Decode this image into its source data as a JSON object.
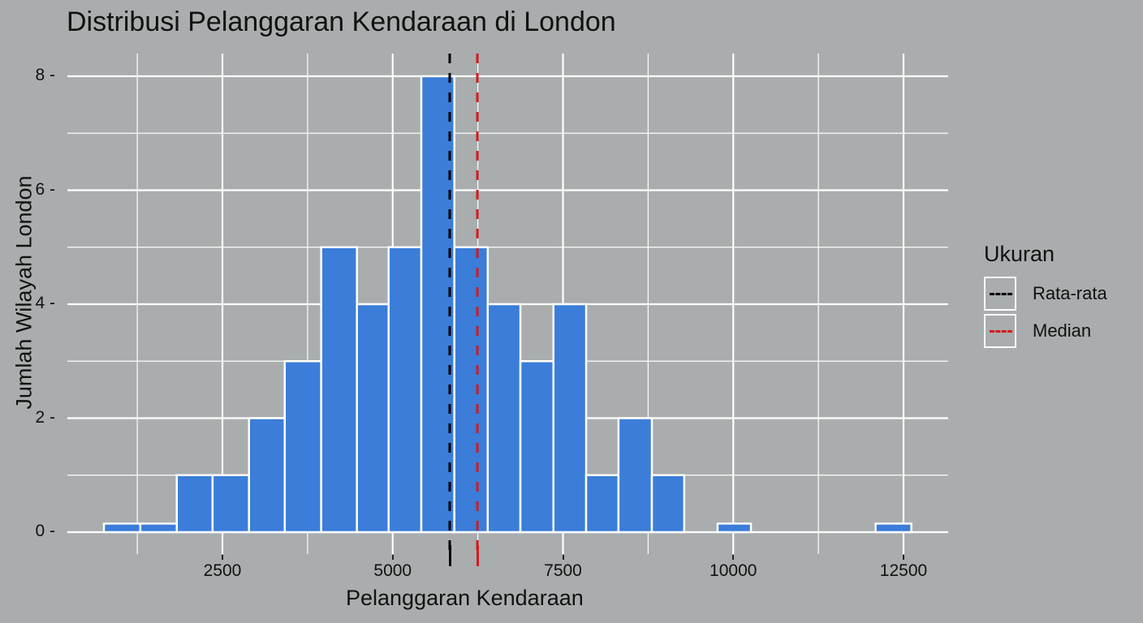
{
  "chart_data": {
    "type": "bar",
    "title": "Distribusi Pelanggaran Kendaraan di London",
    "xlabel": "Pelanggaran Kendaraan",
    "ylabel": "Jumlah Wilayah London",
    "xlim": [
      200,
      13100
    ],
    "ylim": [
      0,
      8.6
    ],
    "x_ticks": [
      2500,
      5000,
      7500,
      10000,
      12500
    ],
    "x_tick_labels": [
      "2500",
      "5000",
      "7500",
      "10000",
      "12500"
    ],
    "y_ticks": [
      0,
      2,
      4,
      6,
      8
    ],
    "y_tick_labels": [
      "0",
      "2",
      "4",
      "6",
      "8"
    ],
    "grid": true,
    "bins": [
      {
        "x0": 760,
        "x1": 1295,
        "count": 0.15
      },
      {
        "x0": 1295,
        "x1": 1830,
        "count": 0.15
      },
      {
        "x0": 1830,
        "x1": 2355,
        "count": 1
      },
      {
        "x0": 2355,
        "x1": 2890,
        "count": 1
      },
      {
        "x0": 2890,
        "x1": 3415,
        "count": 2
      },
      {
        "x0": 3415,
        "x1": 3950,
        "count": 3
      },
      {
        "x0": 3950,
        "x1": 4475,
        "count": 5
      },
      {
        "x0": 4475,
        "x1": 4940,
        "count": 4
      },
      {
        "x0": 4940,
        "x1": 5420,
        "count": 5
      },
      {
        "x0": 5420,
        "x1": 5905,
        "count": 8
      },
      {
        "x0": 5905,
        "x1": 6395,
        "count": 5
      },
      {
        "x0": 6395,
        "x1": 6875,
        "count": 4
      },
      {
        "x0": 6875,
        "x1": 7360,
        "count": 3
      },
      {
        "x0": 7360,
        "x1": 7840,
        "count": 4
      },
      {
        "x0": 7840,
        "x1": 8315,
        "count": 1
      },
      {
        "x0": 8315,
        "x1": 8805,
        "count": 2
      },
      {
        "x0": 8805,
        "x1": 9280,
        "count": 1
      },
      {
        "x0": 9770,
        "x1": 10260,
        "count": 0.15
      },
      {
        "x0": 12090,
        "x1": 12615,
        "count": 0.15
      }
    ],
    "vlines": [
      {
        "name": "Rata-rata",
        "x": 5837,
        "color": "#000000",
        "style": "dashed"
      },
      {
        "name": "Median",
        "x": 6243,
        "color": "#d7191c",
        "style": "dashed"
      }
    ],
    "legend": {
      "title": "Ukuran",
      "position": "right",
      "entries": [
        "Rata-rata",
        "Median"
      ]
    },
    "bar_color": "#3b7dd8",
    "bar_edge_color": "#ffffff",
    "background_color": "#a9adad"
  },
  "legend": {
    "title": "Ukuran",
    "items": [
      {
        "label": "Rata-rata",
        "color": "#000000"
      },
      {
        "label": "Median",
        "color": "#d7191c"
      }
    ]
  }
}
